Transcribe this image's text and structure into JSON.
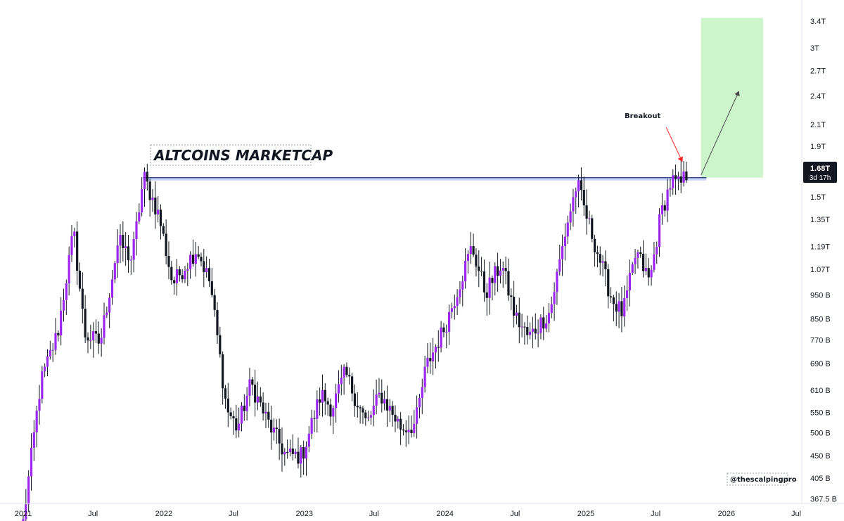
{
  "colors": {
    "bull": "#9c27f0",
    "bear": "#131722",
    "wick": "#131722",
    "target_zone": "#ccf5cc",
    "resistance": "#1a2a6c",
    "resistance_band": "#c9d6ff",
    "breakout_arrow": "#ff2020",
    "projection_arrow": "#4a4a4a",
    "price_tag_bg": "#131722"
  },
  "chart_data": {
    "type": "candlestick",
    "title": "ALTCOINS MARKETCAP",
    "scale": "log",
    "interval": "weekly",
    "y_ticks": [
      "3.4T",
      "3T",
      "2.7T",
      "2.4T",
      "2.1T",
      "1.9T",
      "1.5T",
      "1.35T",
      "1.19T",
      "1.07T",
      "950 B",
      "850 B",
      "770 B",
      "690 B",
      "610 B",
      "550 B",
      "500 B",
      "450 B",
      "405 B",
      "367.5 B"
    ],
    "y_tick_values": [
      3400000000000.0,
      3000000000000.0,
      2700000000000.0,
      2400000000000.0,
      2100000000000.0,
      1900000000000.0,
      1500000000000.0,
      1350000000000.0,
      1190000000000.0,
      1070000000000.0,
      950000000000.0,
      850000000000.0,
      770000000000.0,
      690000000000.0,
      610000000000.0,
      550000000000.0,
      500000000000.0,
      450000000000.0,
      405000000000.0,
      367500000000.0
    ],
    "x_ticks": [
      "2021",
      "Jul",
      "2022",
      "Jul",
      "2023",
      "Jul",
      "2024",
      "Jul",
      "2025",
      "Jul",
      "2026",
      "Jul"
    ],
    "x_tick_dates": [
      "2021-01-01",
      "2021-07-01",
      "2022-01-01",
      "2022-07-01",
      "2023-01-01",
      "2023-07-01",
      "2024-01-01",
      "2024-07-01",
      "2025-01-01",
      "2025-07-01",
      "2026-01-01",
      "2026-07-01"
    ],
    "anchors": [
      [
        "2021-01-01",
        330000000000.0
      ],
      [
        "2021-02-15",
        630000000000.0
      ],
      [
        "2021-04-01",
        800000000000.0
      ],
      [
        "2021-05-12",
        1280000000000.0
      ],
      [
        "2021-06-10",
        790000000000.0
      ],
      [
        "2021-07-20",
        760000000000.0
      ],
      [
        "2021-09-05",
        1220000000000.0
      ],
      [
        "2021-10-10",
        1120000000000.0
      ],
      [
        "2021-11-10",
        1650000000000.0
      ],
      [
        "2021-12-20",
        1370000000000.0
      ],
      [
        "2022-01-24",
        1000000000000.0
      ],
      [
        "2022-03-28",
        1180000000000.0
      ],
      [
        "2022-05-02",
        1000000000000.0
      ],
      [
        "2022-06-13",
        560000000000.0
      ],
      [
        "2022-07-11",
        510000000000.0
      ],
      [
        "2022-08-15",
        630000000000.0
      ],
      [
        "2022-09-26",
        530000000000.0
      ],
      [
        "2022-11-14",
        450000000000.0
      ],
      [
        "2022-12-26",
        450000000000.0
      ],
      [
        "2023-02-13",
        600000000000.0
      ],
      [
        "2023-03-13",
        560000000000.0
      ],
      [
        "2023-04-17",
        660000000000.0
      ],
      [
        "2023-06-12",
        520000000000.0
      ],
      [
        "2023-07-17",
        600000000000.0
      ],
      [
        "2023-09-11",
        510000000000.0
      ],
      [
        "2023-10-16",
        520000000000.0
      ],
      [
        "2023-11-13",
        680000000000.0
      ],
      [
        "2024-01-01",
        820000000000.0
      ],
      [
        "2024-03-11",
        1190000000000.0
      ],
      [
        "2024-04-15",
        960000000000.0
      ],
      [
        "2024-05-27",
        1100000000000.0
      ],
      [
        "2024-07-01",
        860000000000.0
      ],
      [
        "2024-08-05",
        780000000000.0
      ],
      [
        "2024-09-30",
        880000000000.0
      ],
      [
        "2024-11-11",
        1300000000000.0
      ],
      [
        "2024-12-09",
        1600000000000.0
      ],
      [
        "2024-12-30",
        1400000000000.0
      ],
      [
        "2025-02-03",
        1140000000000.0
      ],
      [
        "2025-03-10",
        930000000000.0
      ],
      [
        "2025-04-07",
        870000000000.0
      ],
      [
        "2025-05-12",
        1160000000000.0
      ],
      [
        "2025-06-16",
        1010000000000.0
      ],
      [
        "2025-07-14",
        1380000000000.0
      ],
      [
        "2025-08-11",
        1620000000000.0
      ],
      [
        "2025-09-01",
        1580000000000.0
      ],
      [
        "2025-09-22",
        1680000000000.0
      ]
    ],
    "resistance_level": 1640000000000.0,
    "resistance_start": "2021-11-08",
    "resistance_end": "2025-11-10",
    "target_zone": {
      "from_date": "2025-10-27",
      "to_date": "2026-04-06",
      "low": 1640000000000.0,
      "high": 3450000000000.0
    },
    "projection": {
      "from_date": "2025-10-27",
      "from_value": 1660000000000.0,
      "to_date": "2026-02-02",
      "to_value": 2450000000000.0
    },
    "last_price": "1.68T",
    "countdown": "3d 17h",
    "annotations": [
      {
        "text": "Breakout",
        "date": "2025-07-14",
        "value": 2100000000000.0
      }
    ],
    "credit": "@thescalpingpro"
  }
}
